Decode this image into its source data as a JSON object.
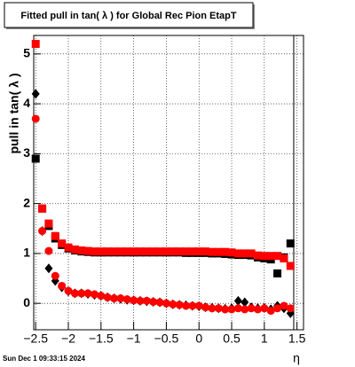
{
  "chart_data": {
    "type": "scatter",
    "title": "Fitted pull in tan( λ ) for Global Rec Pion EtapT",
    "x_label": "η",
    "y_label": "pull in tan( λ )",
    "footer": "Sun Dec  1 09:33:15 2024",
    "grid": true,
    "vline": 1.45,
    "xlim": [
      -2.53,
      1.6
    ],
    "ylim": [
      -0.53,
      5.37
    ],
    "xticks": [
      {
        "value": -2.5,
        "label": "−2.5"
      },
      {
        "value": -2,
        "label": "−2"
      },
      {
        "value": -1.5,
        "label": "−1.5"
      },
      {
        "value": -1,
        "label": "−1"
      },
      {
        "value": -0.5,
        "label": "−0.5"
      },
      0,
      0.5,
      1,
      1.5
    ],
    "yticks": [
      0,
      1,
      2,
      3,
      4,
      5
    ],
    "x": [
      -2.5,
      -2.4,
      -2.3,
      -2.2,
      -2.1,
      -2.0,
      -1.9,
      -1.8,
      -1.7,
      -1.6,
      -1.5,
      -1.4,
      -1.3,
      -1.2,
      -1.1,
      -1.0,
      -0.9,
      -0.8,
      -0.7,
      -0.6,
      -0.5,
      -0.4,
      -0.3,
      -0.2,
      -0.1,
      0.0,
      0.1,
      0.2,
      0.3,
      0.4,
      0.5,
      0.6,
      0.7,
      0.8,
      0.9,
      1.0,
      1.1,
      1.2,
      1.3,
      1.4
    ],
    "series": [
      {
        "color": "#000000",
        "marker": "square",
        "values": [
          2.9,
          1.9,
          1.55,
          1.3,
          1.17,
          1.1,
          1.06,
          1.04,
          1.03,
          1.02,
          1.02,
          1.02,
          1.02,
          1.02,
          1.02,
          1.02,
          1.02,
          1.02,
          1.02,
          1.02,
          1.02,
          1.02,
          1.02,
          1.01,
          1.01,
          1.01,
          1.01,
          1.0,
          1.0,
          0.99,
          0.98,
          0.97,
          0.97,
          0.96,
          0.92,
          0.9,
          0.88,
          0.6,
          0.92,
          1.2
        ]
      },
      {
        "color": "#000000",
        "marker": "diamond",
        "values": [
          4.2,
          1.45,
          0.7,
          0.45,
          0.32,
          0.24,
          0.2,
          0.2,
          0.19,
          0.17,
          0.15,
          0.12,
          0.1,
          0.09,
          0.07,
          0.06,
          0.05,
          0.04,
          0.03,
          0.02,
          0.0,
          -0.02,
          -0.03,
          -0.04,
          -0.05,
          -0.06,
          -0.08,
          -0.09,
          -0.1,
          -0.11,
          -0.1,
          0.05,
          0.02,
          -0.08,
          -0.1,
          -0.09,
          -0.12,
          -0.05,
          -0.1,
          -0.2
        ]
      },
      {
        "color": "#ff0000",
        "marker": "square",
        "values": [
          5.2,
          1.9,
          1.6,
          1.35,
          1.2,
          1.12,
          1.08,
          1.06,
          1.05,
          1.04,
          1.04,
          1.04,
          1.04,
          1.04,
          1.04,
          1.04,
          1.04,
          1.04,
          1.04,
          1.04,
          1.04,
          1.04,
          1.04,
          1.04,
          1.04,
          1.04,
          1.04,
          1.03,
          1.03,
          1.03,
          1.02,
          1.0,
          1.0,
          1.0,
          0.96,
          0.95,
          0.95,
          0.95,
          0.9,
          0.75
        ]
      },
      {
        "color": "#ff0000",
        "marker": "circle",
        "values": [
          3.7,
          1.45,
          1.05,
          0.55,
          0.35,
          0.25,
          0.2,
          0.2,
          0.2,
          0.18,
          0.15,
          0.12,
          0.1,
          0.1,
          0.08,
          0.06,
          0.05,
          0.05,
          0.03,
          0.02,
          0.0,
          -0.02,
          -0.03,
          -0.05,
          -0.05,
          -0.05,
          -0.08,
          -0.1,
          -0.1,
          -0.12,
          -0.12,
          -0.1,
          -0.12,
          -0.1,
          -0.12,
          -0.1,
          -0.15,
          -0.1,
          -0.05,
          -0.1
        ]
      }
    ]
  }
}
